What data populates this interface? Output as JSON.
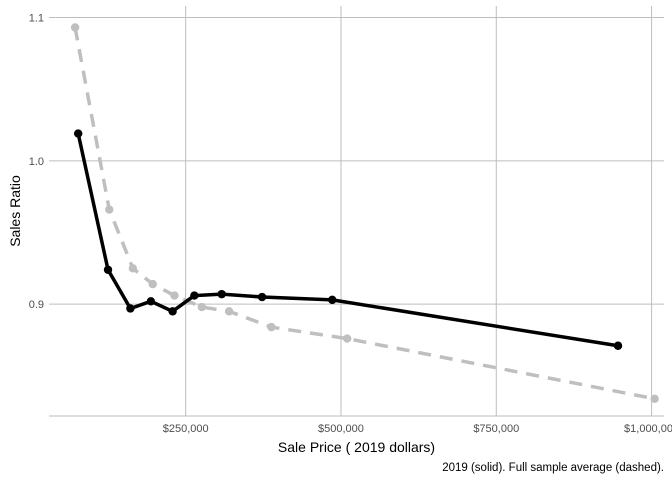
{
  "chart_data": {
    "type": "line",
    "title": "",
    "xlabel": "Sale Price ( 2019 dollars)",
    "ylabel": "Sales Ratio",
    "caption": "2019 (solid). Full sample average (dashed).",
    "xlim": [
      30000,
      1020000
    ],
    "ylim": [
      0.822,
      1.108
    ],
    "x_ticks": [
      {
        "value": 250000,
        "label": "$250,000"
      },
      {
        "value": 500000,
        "label": "$500,000"
      },
      {
        "value": 750000,
        "label": "$750,000"
      },
      {
        "value": 1000000,
        "label": "$1,000,000"
      }
    ],
    "y_ticks": [
      {
        "value": 0.9,
        "label": "0.9"
      },
      {
        "value": 1.0,
        "label": "1.0"
      },
      {
        "value": 1.1,
        "label": "1.1"
      }
    ],
    "grid": true,
    "legend": "none",
    "series": [
      {
        "style": "dashed",
        "color": "#bfbfbf",
        "points": [
          {
            "x": 72000,
            "y": 1.093
          },
          {
            "x": 127000,
            "y": 0.966
          },
          {
            "x": 165000,
            "y": 0.925
          },
          {
            "x": 197000,
            "y": 0.914
          },
          {
            "x": 232000,
            "y": 0.906
          },
          {
            "x": 276000,
            "y": 0.898
          },
          {
            "x": 320000,
            "y": 0.895
          },
          {
            "x": 388000,
            "y": 0.884
          },
          {
            "x": 510000,
            "y": 0.876
          },
          {
            "x": 1005000,
            "y": 0.834
          }
        ]
      },
      {
        "style": "solid",
        "color": "#000000",
        "points": [
          {
            "x": 77000,
            "y": 1.019
          },
          {
            "x": 125000,
            "y": 0.924
          },
          {
            "x": 161000,
            "y": 0.897
          },
          {
            "x": 194000,
            "y": 0.902
          },
          {
            "x": 229000,
            "y": 0.895
          },
          {
            "x": 264000,
            "y": 0.906
          },
          {
            "x": 308000,
            "y": 0.907
          },
          {
            "x": 373000,
            "y": 0.905
          },
          {
            "x": 486000,
            "y": 0.903
          },
          {
            "x": 946000,
            "y": 0.871
          }
        ]
      }
    ]
  }
}
